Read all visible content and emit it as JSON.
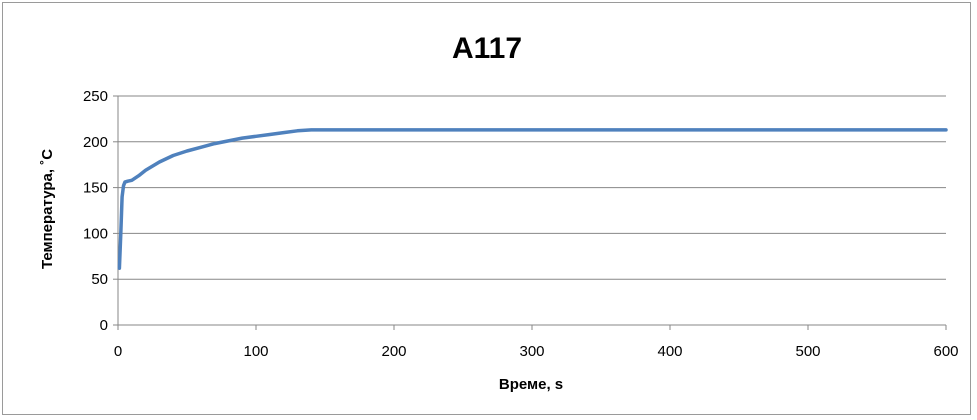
{
  "chart_data": {
    "type": "line",
    "title": "A117",
    "xlabel": "Време, s",
    "ylabel": "Температура, ˚C",
    "xlim": [
      0,
      600
    ],
    "ylim": [
      0,
      250
    ],
    "xticks": [
      "0",
      "100",
      "200",
      "300",
      "400",
      "500",
      "600"
    ],
    "yticks": [
      "0",
      "50",
      "100",
      "150",
      "200",
      "250"
    ],
    "grid": "horizontal",
    "legend": "none",
    "series": [
      {
        "color": "#4f81bd",
        "x": [
          1,
          2,
          3,
          4,
          5,
          7,
          10,
          15,
          20,
          30,
          40,
          50,
          60,
          70,
          80,
          90,
          100,
          110,
          120,
          130,
          140,
          200,
          300,
          400,
          500,
          600
        ],
        "y": [
          62,
          100,
          140,
          152,
          156,
          157,
          158,
          163,
          169,
          178,
          185,
          190,
          194,
          198,
          201,
          204,
          206,
          208,
          210,
          212,
          213,
          213,
          213,
          213,
          213,
          213
        ]
      }
    ]
  }
}
